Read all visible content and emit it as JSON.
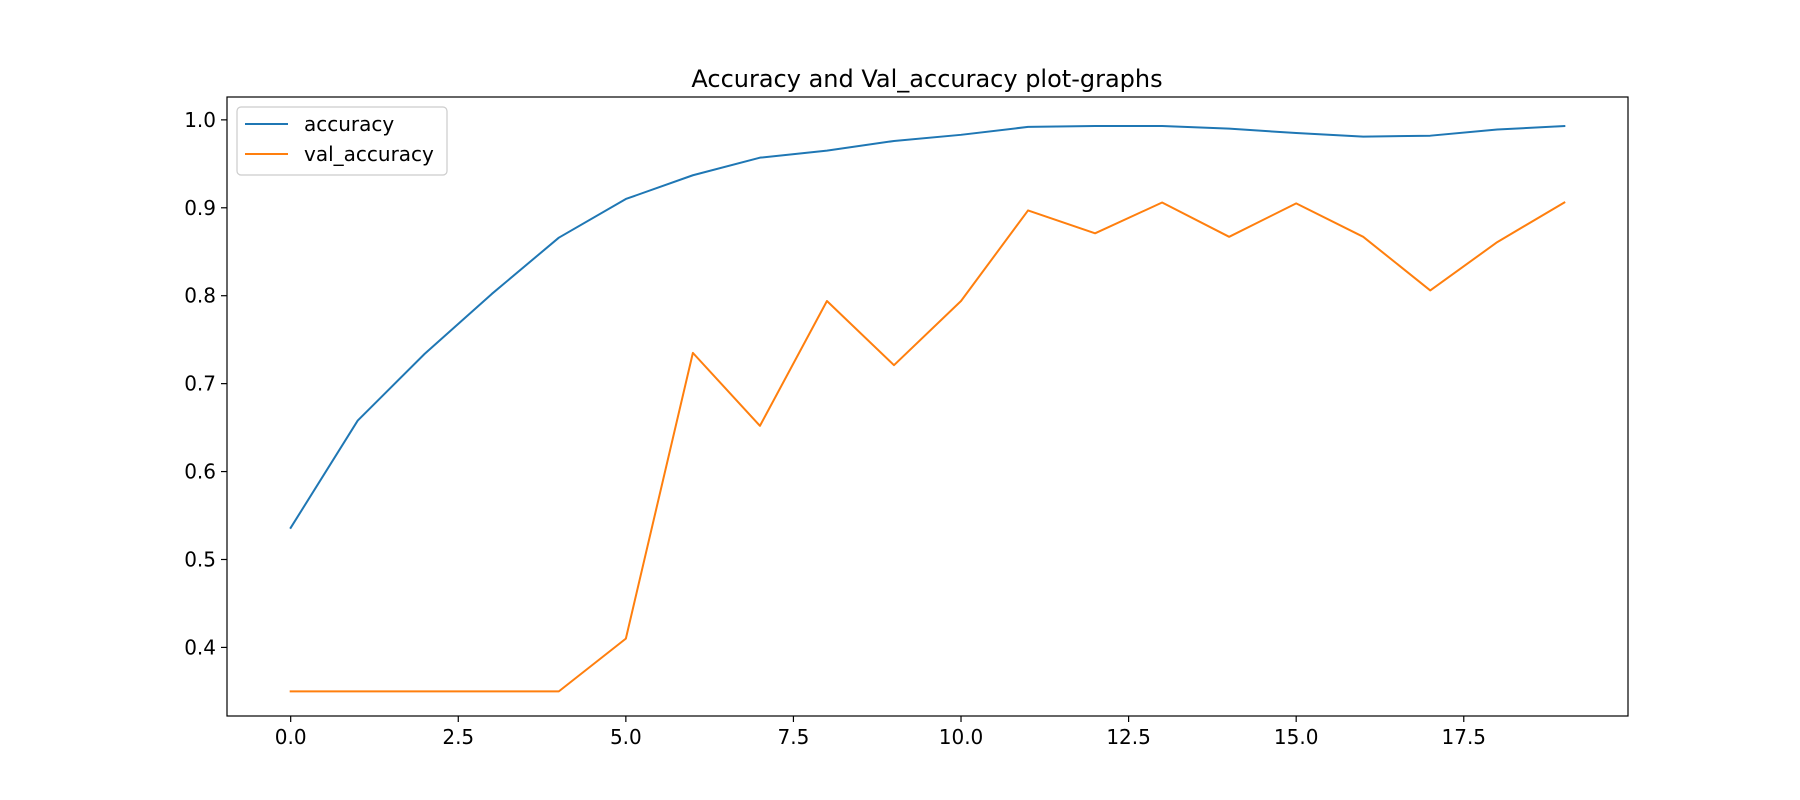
{
  "chart_data": {
    "type": "line",
    "title": "Accuracy and Val_accuracy plot-graphs",
    "xlabel": "",
    "ylabel": "",
    "xlim": [
      -0.95,
      19.95
    ],
    "ylim": [
      0.322,
      1.026
    ],
    "xticks": [
      0.0,
      2.5,
      5.0,
      7.5,
      10.0,
      12.5,
      15.0,
      17.5
    ],
    "xtick_labels": [
      "0.0",
      "2.5",
      "5.0",
      "7.5",
      "10.0",
      "12.5",
      "15.0",
      "17.5"
    ],
    "yticks": [
      0.4,
      0.5,
      0.6,
      0.7,
      0.8,
      0.9,
      1.0
    ],
    "ytick_labels": [
      "0.4",
      "0.5",
      "0.6",
      "0.7",
      "0.8",
      "0.9",
      "1.0"
    ],
    "grid": false,
    "legend_position": "top-left",
    "x": [
      0,
      1,
      2,
      3,
      4,
      5,
      6,
      7,
      8,
      9,
      10,
      11,
      12,
      13,
      14,
      15,
      16,
      17,
      18,
      19
    ],
    "series": [
      {
        "name": "accuracy",
        "color": "#1f77b4",
        "values": [
          0.536,
          0.658,
          0.734,
          0.802,
          0.866,
          0.91,
          0.937,
          0.957,
          0.965,
          0.976,
          0.983,
          0.992,
          0.993,
          0.993,
          0.99,
          0.985,
          0.981,
          0.982,
          0.989,
          0.993
        ]
      },
      {
        "name": "val_accuracy",
        "color": "#ff7f0e",
        "values": [
          0.35,
          0.35,
          0.35,
          0.35,
          0.35,
          0.41,
          0.735,
          0.652,
          0.794,
          0.721,
          0.794,
          0.897,
          0.871,
          0.906,
          0.867,
          0.905,
          0.867,
          0.806,
          0.861,
          0.906
        ]
      }
    ]
  }
}
